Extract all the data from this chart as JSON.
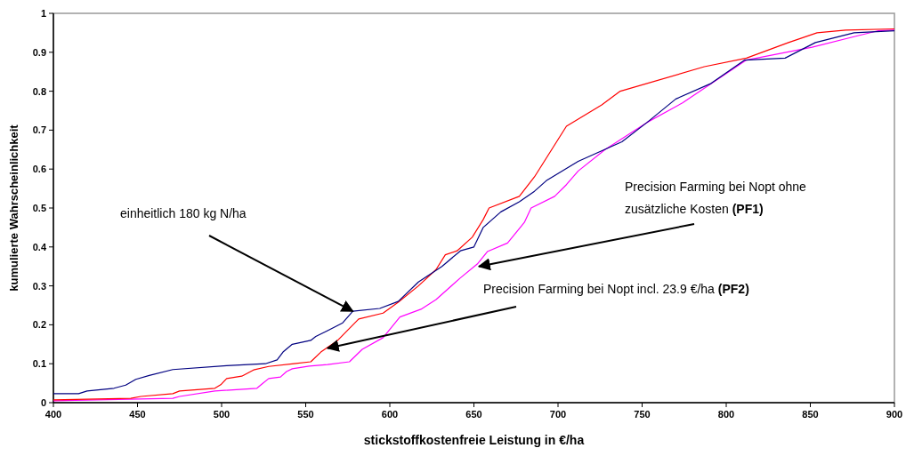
{
  "chart_data": {
    "type": "line",
    "xlabel": "stickstoffkostenfreie Leistung in €/ha",
    "ylabel": "kumulierte Wahrscheinlichkeit",
    "xlim": [
      400,
      900
    ],
    "ylim": [
      0,
      1
    ],
    "xticks": [
      400,
      450,
      500,
      550,
      600,
      650,
      700,
      750,
      800,
      850,
      900
    ],
    "yticks": [
      0,
      0.1,
      0.2,
      0.3,
      0.4,
      0.5,
      0.6,
      0.7,
      0.8,
      0.9,
      1
    ],
    "grid": false,
    "legend": false,
    "marker": "none",
    "line_style": "solid",
    "series": [
      {
        "color": "#000080",
        "x": [
          400,
          415,
          420,
          436,
          443,
          449,
          457,
          471,
          503,
          526,
          533,
          536.5,
          542,
          553,
          556,
          563,
          572,
          578,
          594,
          605,
          617,
          631,
          642,
          650,
          655.5,
          666,
          677,
          686,
          693,
          712,
          738,
          753,
          770,
          791,
          811,
          835,
          853,
          876,
          900
        ],
        "values": [
          0.023,
          0.023,
          0.03,
          0.037,
          0.045,
          0.06,
          0.07,
          0.085,
          0.095,
          0.1,
          0.11,
          0.13,
          0.15,
          0.16,
          0.17,
          0.185,
          0.205,
          0.235,
          0.242,
          0.26,
          0.31,
          0.35,
          0.39,
          0.4,
          0.45,
          0.49,
          0.516,
          0.543,
          0.57,
          0.62,
          0.67,
          0.72,
          0.78,
          0.82,
          0.88,
          0.885,
          0.925,
          0.95,
          0.955
        ]
      },
      {
        "color": "#ff0000",
        "x": [
          400,
          446,
          452,
          471,
          475,
          496,
          499.5,
          503,
          512,
          519,
          528,
          543,
          553,
          559,
          569,
          581.5,
          596,
          605,
          617,
          627.5,
          633,
          640,
          649,
          655.5,
          659,
          677,
          686,
          705,
          726,
          737,
          787,
          812,
          837,
          854,
          871,
          900
        ],
        "values": [
          0.007,
          0.011,
          0.016,
          0.023,
          0.03,
          0.037,
          0.046,
          0.062,
          0.068,
          0.084,
          0.093,
          0.1,
          0.105,
          0.13,
          0.16,
          0.215,
          0.23,
          0.258,
          0.3,
          0.342,
          0.38,
          0.39,
          0.425,
          0.47,
          0.5,
          0.53,
          0.58,
          0.71,
          0.765,
          0.8,
          0.863,
          0.885,
          0.925,
          0.95,
          0.957,
          0.96
        ]
      },
      {
        "color": "#ff00ff",
        "x": [
          400,
          471,
          475,
          496,
          521,
          524,
          528,
          535,
          538.6,
          542,
          552,
          563,
          576,
          583.6,
          596,
          606,
          618.5,
          627.5,
          641.8,
          652,
          658,
          670,
          680,
          684,
          698,
          705,
          712,
          728,
          753,
          774,
          812,
          851,
          876,
          890,
          900
        ],
        "values": [
          0.005,
          0.011,
          0.016,
          0.03,
          0.037,
          0.048,
          0.062,
          0.066,
          0.08,
          0.087,
          0.094,
          0.098,
          0.105,
          0.137,
          0.167,
          0.22,
          0.24,
          0.265,
          0.32,
          0.356,
          0.388,
          0.41,
          0.463,
          0.5,
          0.53,
          0.56,
          0.595,
          0.65,
          0.72,
          0.77,
          0.88,
          0.913,
          0.94,
          0.955,
          0.957
        ]
      }
    ],
    "annotations": [
      {
        "text": "einheitlich 180 kg N/ha",
        "x": 578,
        "y": 0.235
      },
      {
        "text": "Precision Farming bei Nopt ohne zusätzliche Kosten (PF1)",
        "x": 653,
        "y": 0.35
      },
      {
        "text": "Precision Farming bei Nopt incl. 23.9 €/ha (PF2)",
        "x": 563,
        "y": 0.14
      }
    ]
  }
}
